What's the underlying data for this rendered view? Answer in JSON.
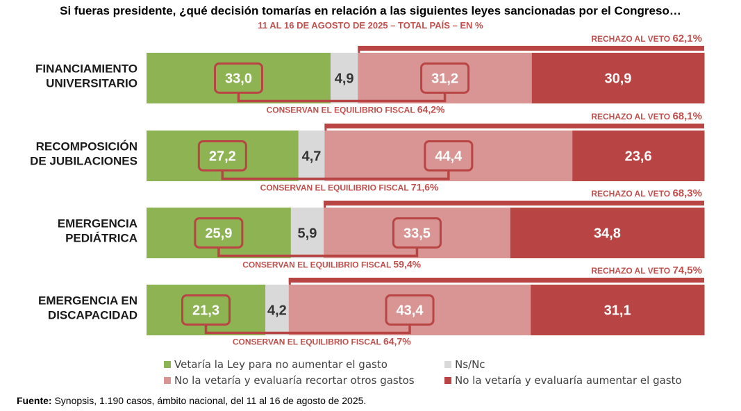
{
  "title": "Si fueras presidente, ¿qué decisión tomarías en relación a las siguientes leyes sancionadas por el Congreso…",
  "subtitle": "11 AL 16 DE AGOSTO DE 2025 – TOTAL PAÍS – EN %",
  "source": {
    "label": "Fuente:",
    "text": " Synopsis, 1.190 casos, ámbito nacional, del 11 al 16 de agosto de 2025."
  },
  "colors": {
    "green": "#8db353",
    "grey": "#d9d9d9",
    "pink": "#d99594",
    "red": "#b94444",
    "accent": "#b94444",
    "text_red": "#c0504d"
  },
  "chart_data": {
    "type": "bar",
    "orientation": "horizontal",
    "stacked": true,
    "title": "Si fueras presidente, ¿qué decisión tomarías en relación a las siguientes leyes sancionadas por el Congreso…",
    "subtitle": "11 AL 16 DE AGOSTO DE 2025 – TOTAL PAÍS – EN %",
    "categories": [
      [
        "FINANCIAMIENTO",
        "UNIVERSITARIO"
      ],
      [
        "RECOMPOSICIÓN",
        "DE JUBILACIONES"
      ],
      [
        "EMERGENCIA",
        "PEDIÁTRICA"
      ],
      [
        "EMERGENCIA EN",
        "DISCAPACIDAD"
      ]
    ],
    "series": [
      {
        "name": "Vetaría la Ley para no aumentar el gasto",
        "color": "#8db353",
        "values": [
          33.0,
          27.2,
          25.9,
          21.3
        ],
        "labels": [
          "33,0",
          "27,2",
          "25,9",
          "21,3"
        ]
      },
      {
        "name": "Ns/Nc",
        "color": "#d9d9d9",
        "values": [
          4.9,
          4.7,
          5.9,
          4.2
        ],
        "labels": [
          "4,9",
          "4,7",
          "5,9",
          "4,2"
        ]
      },
      {
        "name": "No la vetaría y evaluaría recortar otros gastos",
        "color": "#d99594",
        "values": [
          31.2,
          44.4,
          33.5,
          43.4
        ],
        "labels": [
          "31,2",
          "44,4",
          "33,5",
          "43,4"
        ]
      },
      {
        "name": "No la vetaría y evaluaría aumentar el gasto",
        "color": "#b94444",
        "values": [
          30.9,
          23.6,
          34.8,
          31.1
        ],
        "labels": [
          "30,9",
          "23,6",
          "34,8",
          "31,1"
        ]
      }
    ],
    "annotations": {
      "rechazo_prefix": "RECHAZO AL VETO ",
      "rechazo_values": [
        "62,1%",
        "68,1%",
        "68,3%",
        "74,5%"
      ],
      "conservan_prefix": "CONSERVAN EL EQUILIBRIO FISCAL ",
      "conservan_values": [
        "64,2%",
        "71,6%",
        "59,4%",
        "64,7%"
      ]
    },
    "xlim": [
      0,
      100
    ],
    "legend_position": "bottom"
  }
}
